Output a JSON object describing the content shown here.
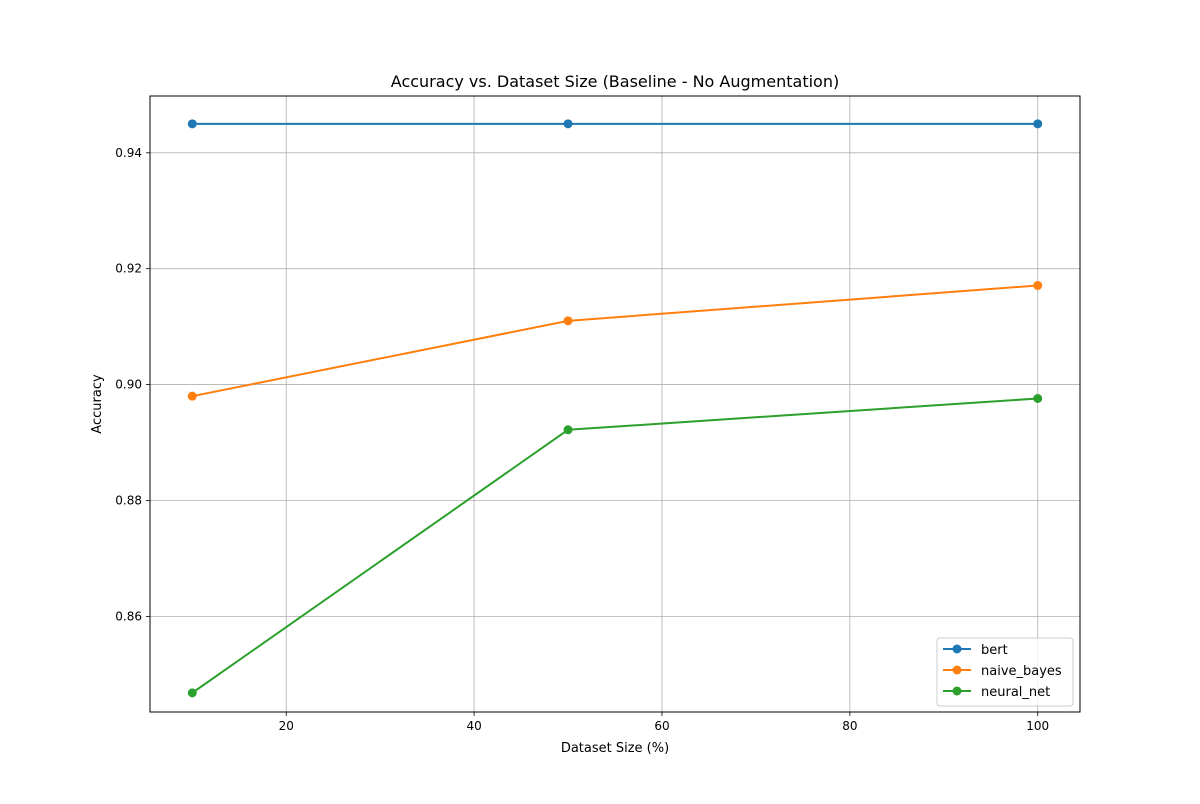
{
  "chart_data": {
    "type": "line",
    "title": "Accuracy vs. Dataset Size (Baseline - No Augmentation)",
    "xlabel": "Dataset Size (%)",
    "ylabel": "Accuracy",
    "x": [
      10,
      50,
      100
    ],
    "xlim": [
      5.5,
      104.5
    ],
    "ylim": [
      0.8435,
      0.9498
    ],
    "xticks": [
      20,
      40,
      60,
      80,
      100
    ],
    "yticks": [
      0.86,
      0.88,
      0.9,
      0.92,
      0.94
    ],
    "xtick_labels": [
      "20",
      "40",
      "60",
      "80",
      "100"
    ],
    "ytick_labels": [
      "0.86",
      "0.88",
      "0.90",
      "0.92",
      "0.94"
    ],
    "grid": true,
    "legend_position": "lower-right",
    "markers": "circle",
    "series": [
      {
        "name": "bert",
        "color": "#1f77b4",
        "values": [
          0.945,
          0.945,
          0.945
        ]
      },
      {
        "name": "naive_bayes",
        "color": "#ff7f0e",
        "values": [
          0.898,
          0.911,
          0.9171
        ]
      },
      {
        "name": "neural_net",
        "color": "#2ca02c",
        "values": [
          0.8468,
          0.8922,
          0.8976
        ]
      }
    ]
  }
}
